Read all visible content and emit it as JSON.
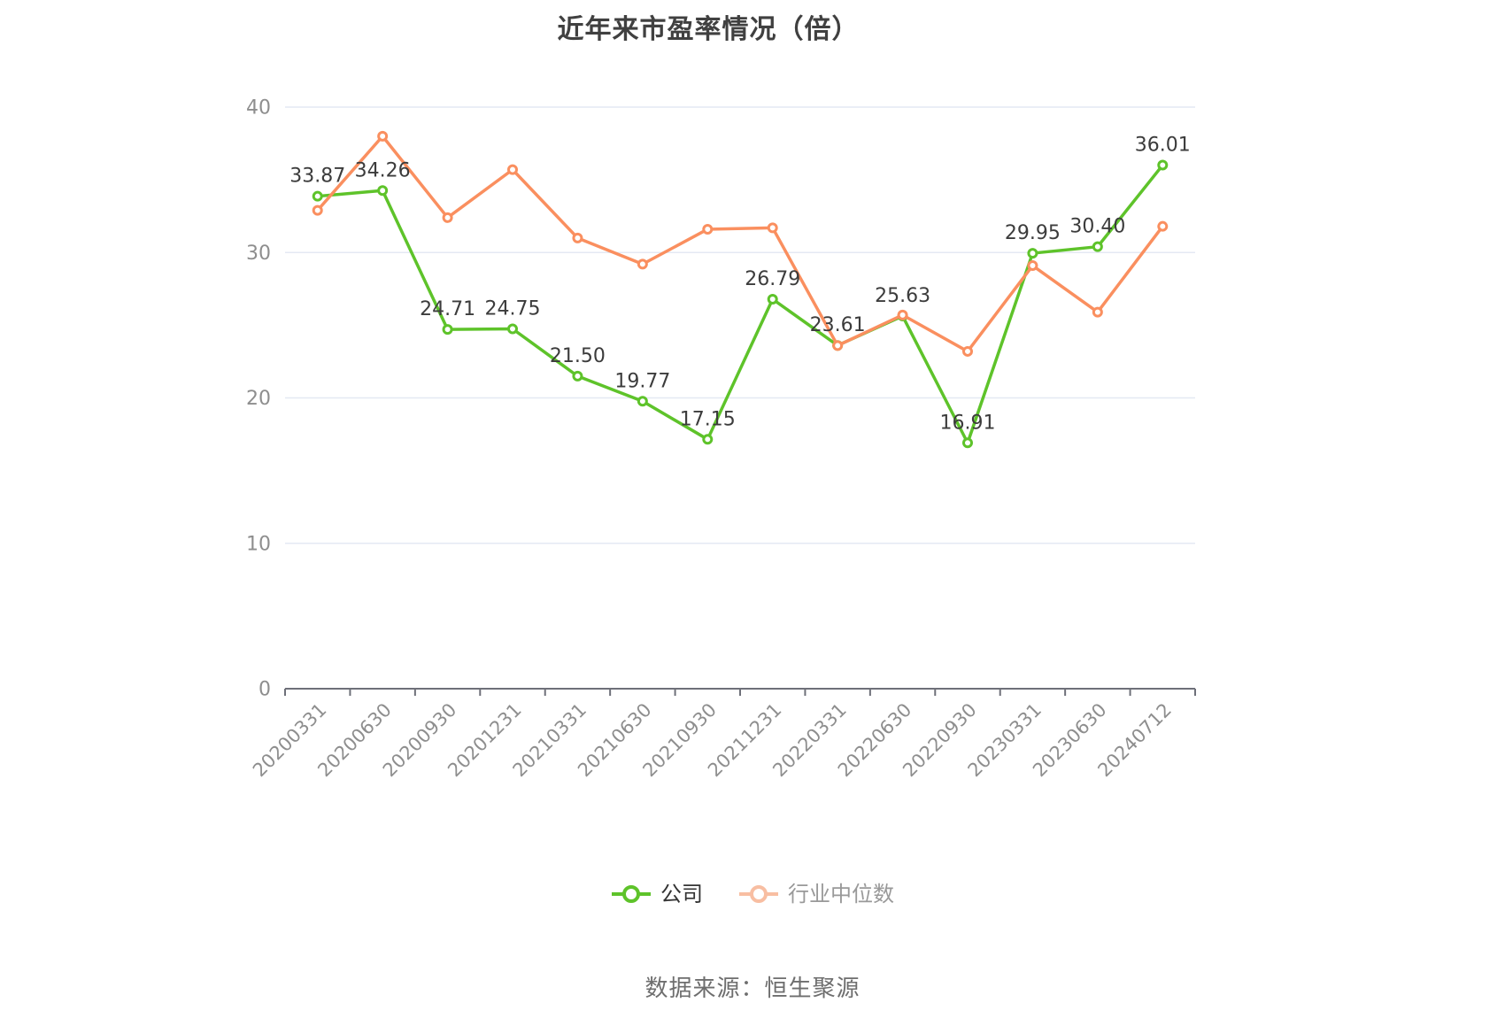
{
  "source_text": "数据来源：恒生聚源",
  "colors": {
    "company": "#5EC32A",
    "industry_median": "#FA8F5F",
    "grid_line": "#E4E9F3",
    "axis_line": "#6E7079",
    "tick_label": "#8E8E8E",
    "data_label": "#3C3C3C",
    "title": "#404040",
    "source": "#6E6E6E"
  },
  "legend": {
    "items": [
      {
        "label": "公司",
        "marker_color": "#5EC32A",
        "label_color": "#333333"
      },
      {
        "label": "行业中位数",
        "marker_color": "#F8BEA2",
        "label_color": "#999999"
      }
    ]
  },
  "chart_data": {
    "type": "line",
    "title": "近年来市盈率情况（倍）",
    "categories": [
      "20200331",
      "20200630",
      "20200930",
      "20201231",
      "20210331",
      "20210630",
      "20210930",
      "20211231",
      "20220331",
      "20220630",
      "20220930",
      "20230331",
      "20230630",
      "20240712"
    ],
    "series": [
      {
        "name": "公司",
        "color": "#5EC32A",
        "values": [
          33.87,
          34.26,
          24.71,
          24.75,
          21.5,
          19.77,
          17.15,
          26.79,
          23.61,
          25.63,
          16.91,
          29.95,
          30.4,
          36.01
        ],
        "value_labels": [
          "33.87",
          "34.26",
          "24.71",
          "24.75",
          "21.50",
          "19.77",
          "17.15",
          "26.79",
          "23.61",
          "25.63",
          "16.91",
          "29.95",
          "30.40",
          "36.01"
        ],
        "labels_shown": true
      },
      {
        "name": "行业中位数",
        "color": "#FA8F5F",
        "values": [
          32.9,
          38.0,
          32.4,
          35.7,
          31.0,
          29.2,
          31.6,
          31.7,
          23.6,
          25.7,
          23.2,
          29.1,
          25.9,
          31.8
        ],
        "values_estimated": true,
        "labels_shown": false
      }
    ],
    "xlabel": "",
    "ylabel": "",
    "ylim": [
      0,
      40
    ],
    "yticks": [
      0,
      10,
      20,
      30,
      40
    ],
    "grid": true,
    "x_label_rotate": 45,
    "legend_position": "bottom"
  }
}
